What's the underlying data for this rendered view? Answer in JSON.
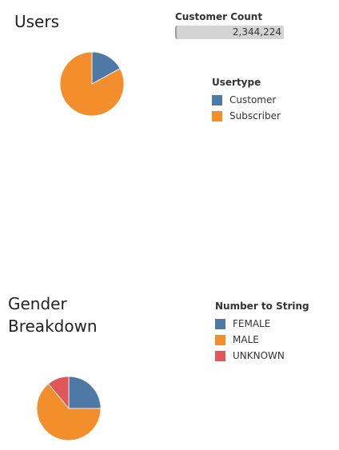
{
  "users_section": {
    "title": "Users"
  },
  "customer_count_filter": {
    "label": "Customer Count",
    "value": "2,344,224"
  },
  "usertype_legend": {
    "title": "Usertype",
    "items": [
      {
        "label": "Customer",
        "color": "#4e79a7"
      },
      {
        "label": "Subscriber",
        "color": "#f28e2b"
      }
    ]
  },
  "gender_section": {
    "title": "Gender Breakdown"
  },
  "gender_legend": {
    "title": "Number to String",
    "items": [
      {
        "label": "FEMALE",
        "color": "#4e79a7"
      },
      {
        "label": "MALE",
        "color": "#f28e2b"
      },
      {
        "label": "UNKNOWN",
        "color": "#e15759"
      }
    ]
  },
  "chart_data": [
    {
      "type": "pie",
      "title": "Users",
      "categories": [
        "Customer",
        "Subscriber"
      ],
      "values": [
        0.17,
        0.83
      ],
      "colors": [
        "#4e79a7",
        "#f28e2b"
      ],
      "legend": "right"
    },
    {
      "type": "pie",
      "title": "Gender Breakdown",
      "categories": [
        "FEMALE",
        "MALE",
        "UNKNOWN"
      ],
      "values": [
        0.25,
        0.64,
        0.11
      ],
      "colors": [
        "#4e79a7",
        "#f28e2b",
        "#e15759"
      ],
      "legend": "top-right"
    }
  ]
}
